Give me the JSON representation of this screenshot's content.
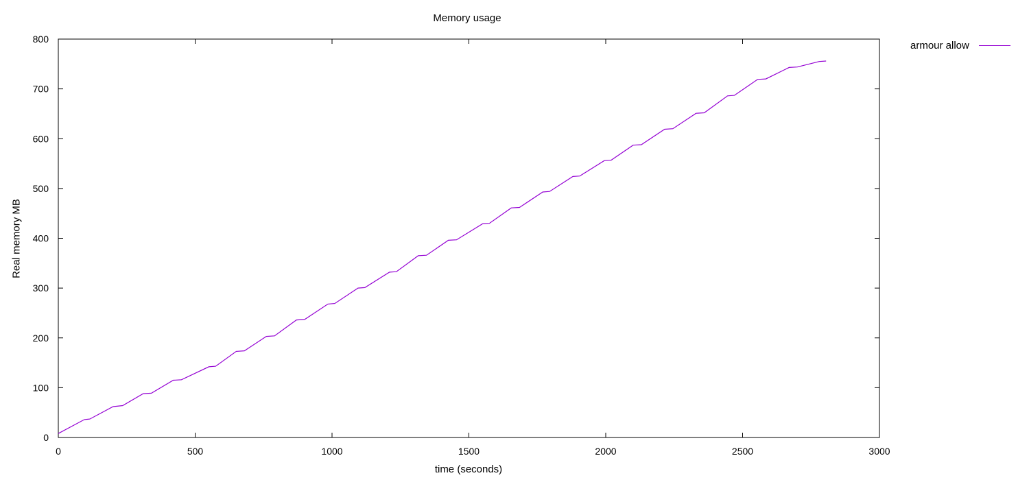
{
  "chart_data": {
    "type": "line",
    "title": "Memory usage",
    "xlabel": "time (seconds)",
    "ylabel": "Real memory MB",
    "xlim": [
      0,
      3000
    ],
    "ylim": [
      0,
      800
    ],
    "xticks": [
      0,
      500,
      1000,
      1500,
      2000,
      2500,
      3000
    ],
    "yticks": [
      0,
      100,
      200,
      300,
      400,
      500,
      600,
      700,
      800
    ],
    "grid": false,
    "legend_position": "top-right outside",
    "series": [
      {
        "name": "armour allow",
        "color": "#9400d3",
        "x": [
          0,
          95,
          115,
          200,
          235,
          310,
          340,
          420,
          450,
          550,
          575,
          650,
          680,
          760,
          790,
          870,
          900,
          985,
          1010,
          1095,
          1120,
          1210,
          1235,
          1315,
          1345,
          1425,
          1455,
          1550,
          1575,
          1655,
          1685,
          1770,
          1795,
          1880,
          1905,
          1995,
          2020,
          2100,
          2130,
          2215,
          2245,
          2330,
          2360,
          2445,
          2470,
          2555,
          2585,
          2670,
          2700,
          2780,
          2805
        ],
        "y": [
          8,
          36,
          37,
          62,
          64,
          88,
          89,
          115,
          116,
          142,
          143,
          173,
          174,
          203,
          204,
          236,
          237,
          268,
          269,
          300,
          301,
          332,
          333,
          365,
          366,
          396,
          397,
          429,
          430,
          461,
          462,
          493,
          494,
          524,
          525,
          556,
          557,
          587,
          588,
          619,
          620,
          651,
          652,
          686,
          687,
          719,
          720,
          743,
          744,
          755,
          756
        ]
      }
    ]
  }
}
